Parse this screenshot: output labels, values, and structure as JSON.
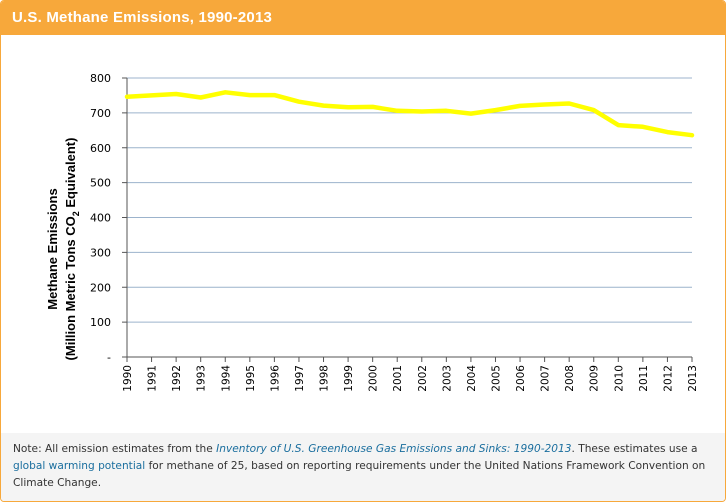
{
  "header": {
    "title": "U.S. Methane Emissions, 1990-2013"
  },
  "chart_data": {
    "type": "line",
    "title": "U.S. Methane Emissions, 1990-2013",
    "ylabel_line1": "Methane Emissions",
    "ylabel_line2_pre": "(Million Metric Tons CO",
    "ylabel_line2_sub": "2",
    "ylabel_line2_post": " Equivalent)",
    "xlabel": "",
    "x": [
      "1990",
      "1991",
      "1992",
      "1993",
      "1994",
      "1995",
      "1996",
      "1997",
      "1998",
      "1999",
      "2000",
      "2001",
      "2002",
      "2003",
      "2004",
      "2005",
      "2006",
      "2007",
      "2008",
      "2009",
      "2010",
      "2011",
      "2012",
      "2013"
    ],
    "series": [
      {
        "values": [
          746,
          750,
          754,
          744,
          759,
          751,
          751,
          732,
          721,
          716,
          717,
          706,
          704,
          706,
          698,
          708,
          720,
          724,
          727,
          708,
          665,
          660,
          645,
          636
        ]
      }
    ],
    "ylim": [
      0,
      800
    ],
    "yticks": [
      0,
      100,
      200,
      300,
      400,
      500,
      600,
      700,
      800
    ],
    "ytick_labels": [
      "-",
      "100",
      "200",
      "300",
      "400",
      "500",
      "600",
      "700",
      "800"
    ],
    "grid": true,
    "line_color": "#ffff00"
  },
  "note": {
    "prefix": "Note: All emission estimates from the ",
    "inventory_link": "Inventory of U.S. Greenhouse Gas Emissions and Sinks: 1990-2013",
    "middle": ". These estimates use a ",
    "gwp_link": "global warming potential",
    "suffix": " for methane of 25, based on reporting requirements under the United Nations Framework Convention on Climate Change."
  }
}
